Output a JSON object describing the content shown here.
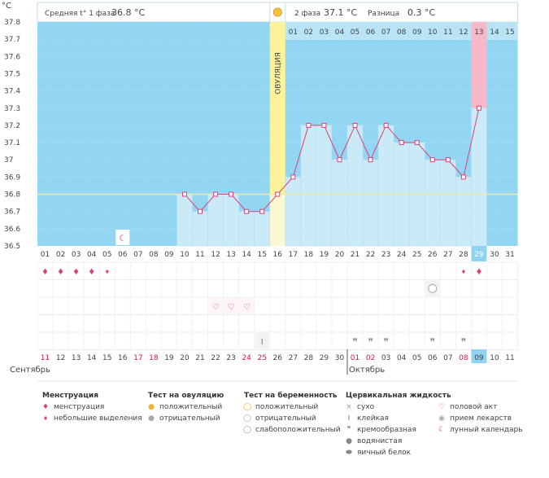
{
  "units": "°C",
  "header": {
    "phase1_label": "Средняя t° 1 фаза",
    "phase1_value": "36.8 °C",
    "phase2_label": "2 фаза",
    "phase2_value": "37.1 °C",
    "diff_label": "Разница",
    "diff_value": "0.3 °C"
  },
  "ovulation_label": "ОВУЛЯЦИЯ",
  "colors": {
    "phase_bg": "#93d6f3",
    "bar_fill": "#cbeaf8",
    "ovulation_band": "#fcf29c",
    "ovulation_band_light": "#fdf8d4",
    "line": "#dd3f78",
    "average_line": "#f1e9a0",
    "today_cell": "#8fd3f1",
    "pink_bar": "#f6b7c9",
    "weekend_date": "#d8163c"
  },
  "chart_data": {
    "type": "line",
    "y_ticks": [
      "37.8",
      "37.7",
      "37.6",
      "37.5",
      "37.4",
      "37.3",
      "37.2",
      "37.1",
      "37",
      "36.9",
      "36.8",
      "36.7",
      "36.6",
      "36.5"
    ],
    "ylim": [
      36.5,
      37.8
    ],
    "average_level": 36.8,
    "cycle_days": [
      "01",
      "02",
      "03",
      "04",
      "05",
      "06",
      "07",
      "08",
      "09",
      "10",
      "11",
      "12",
      "13",
      "14",
      "15",
      "16",
      "17",
      "18",
      "19",
      "20",
      "21",
      "22",
      "23",
      "24",
      "25",
      "26",
      "27",
      "28",
      "29",
      "30",
      "31"
    ],
    "post_ovulation_days": [
      "01",
      "02",
      "03",
      "04",
      "05",
      "06",
      "07",
      "08",
      "09",
      "10",
      "11",
      "12",
      "13",
      "14",
      "15"
    ],
    "calendar_dates": [
      "11",
      "12",
      "13",
      "14",
      "15",
      "16",
      "17",
      "18",
      "19",
      "20",
      "21",
      "22",
      "23",
      "24",
      "25",
      "26",
      "27",
      "28",
      "29",
      "30",
      "01",
      "02",
      "03",
      "04",
      "05",
      "06",
      "07",
      "08",
      "09",
      "10",
      "11"
    ],
    "weekend_date_indices": [
      0,
      6,
      7,
      13,
      14,
      20,
      21,
      27
    ],
    "highlight_cycle_day_index": 28,
    "ovulation_day_index": 15,
    "month_start": "Сентябрь",
    "month_next": "Октябрь",
    "series": [
      {
        "values": [
          null,
          null,
          null,
          null,
          null,
          null,
          null,
          null,
          null,
          36.8,
          36.7,
          36.8,
          36.8,
          36.7,
          36.7,
          36.8,
          36.9,
          37.2,
          37.2,
          37.0,
          37.2,
          37.0,
          37.2,
          37.1,
          37.1,
          37.0,
          37.0,
          36.9,
          37.3,
          null,
          null
        ]
      }
    ],
    "rows": {
      "menstruation": {
        "heavy": [
          0,
          1,
          2,
          3,
          28
        ],
        "light": [
          4,
          27
        ]
      },
      "ovulation_test_positive": [
        15
      ],
      "lunar_calendar": [
        5
      ],
      "pregnancy_test_weak": [
        25
      ],
      "intercourse": [
        11,
        12,
        13
      ],
      "cervical_sticky": [
        14
      ],
      "cervical_creamy": [
        20,
        21,
        22,
        25,
        27
      ]
    }
  },
  "legend": {
    "menstruation": {
      "title": "Менструация",
      "items": [
        "менструация",
        "небольшие выделения"
      ]
    },
    "ovulation_test": {
      "title": "Тест на овуляцию",
      "items": [
        "положительный",
        "отрицательный"
      ]
    },
    "pregnancy_test": {
      "title": "Тест на беременность",
      "items": [
        "положительный",
        "отрицательный",
        "слабоположительный"
      ]
    },
    "cervical": {
      "title": "Цервикальная жидкость",
      "items": [
        "сухо",
        "клейкая",
        "кремообразная",
        "водянистая",
        "яичный белок"
      ]
    },
    "other": {
      "items": [
        "половой акт",
        "прием лекарств",
        "лунный календарь"
      ]
    }
  }
}
